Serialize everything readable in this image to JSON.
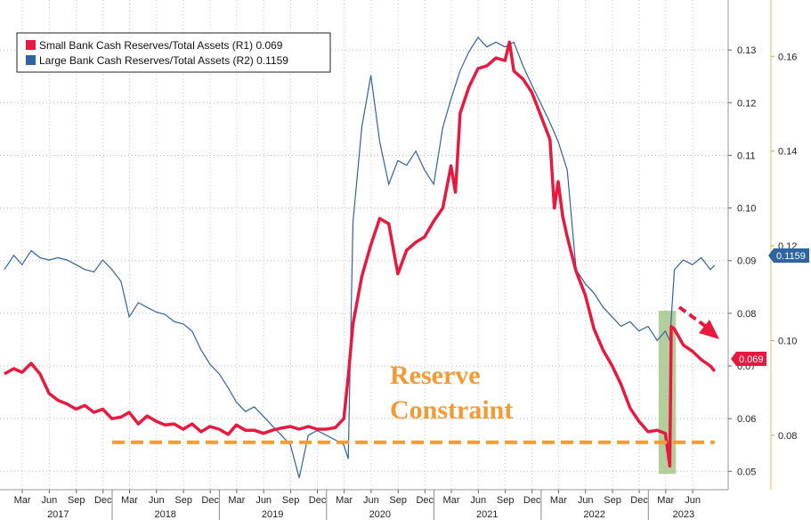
{
  "chart_data": {
    "type": "line",
    "legend_position": "top-left",
    "grid": true,
    "series": [
      {
        "name": "Small Bank Cash Reserves/Total Assets (R1)",
        "last_value": "0.069",
        "axis": "R1",
        "color": "#e8193f",
        "points": [
          [
            "2016-12-30",
            0.0685
          ],
          [
            "2017-01-31",
            0.0695
          ],
          [
            "2017-02-28",
            0.0688
          ],
          [
            "2017-03-31",
            0.0705
          ],
          [
            "2017-04-30",
            0.0685
          ],
          [
            "2017-05-31",
            0.0648
          ],
          [
            "2017-06-30",
            0.0635
          ],
          [
            "2017-07-31",
            0.0628
          ],
          [
            "2017-08-31",
            0.0618
          ],
          [
            "2017-09-30",
            0.0625
          ],
          [
            "2017-10-31",
            0.0612
          ],
          [
            "2017-11-30",
            0.0618
          ],
          [
            "2017-12-31",
            0.06
          ],
          [
            "2018-01-31",
            0.0603
          ],
          [
            "2018-02-28",
            0.0612
          ],
          [
            "2018-03-31",
            0.059
          ],
          [
            "2018-04-30",
            0.0605
          ],
          [
            "2018-05-31",
            0.0595
          ],
          [
            "2018-06-30",
            0.0588
          ],
          [
            "2018-07-31",
            0.059
          ],
          [
            "2018-08-31",
            0.058
          ],
          [
            "2018-09-30",
            0.059
          ],
          [
            "2018-10-31",
            0.0575
          ],
          [
            "2018-11-30",
            0.0585
          ],
          [
            "2018-12-31",
            0.058
          ],
          [
            "2019-01-31",
            0.057
          ],
          [
            "2019-02-28",
            0.0588
          ],
          [
            "2019-03-31",
            0.0578
          ],
          [
            "2019-04-30",
            0.0578
          ],
          [
            "2019-05-31",
            0.0572
          ],
          [
            "2019-06-30",
            0.0578
          ],
          [
            "2019-07-31",
            0.0582
          ],
          [
            "2019-08-31",
            0.0585
          ],
          [
            "2019-09-30",
            0.058
          ],
          [
            "2019-10-31",
            0.0585
          ],
          [
            "2019-11-30",
            0.058
          ],
          [
            "2019-12-31",
            0.058
          ],
          [
            "2020-01-31",
            0.0583
          ],
          [
            "2020-02-29",
            0.06
          ],
          [
            "2020-03-15",
            0.068
          ],
          [
            "2020-03-31",
            0.078
          ],
          [
            "2020-04-30",
            0.087
          ],
          [
            "2020-05-31",
            0.093
          ],
          [
            "2020-06-30",
            0.098
          ],
          [
            "2020-07-31",
            0.097
          ],
          [
            "2020-08-31",
            0.0875
          ],
          [
            "2020-09-30",
            0.092
          ],
          [
            "2020-10-31",
            0.0935
          ],
          [
            "2020-11-30",
            0.0945
          ],
          [
            "2020-12-31",
            0.0975
          ],
          [
            "2021-01-31",
            0.1
          ],
          [
            "2021-02-28",
            0.108
          ],
          [
            "2021-03-15",
            0.103
          ],
          [
            "2021-03-31",
            0.118
          ],
          [
            "2021-04-30",
            0.123
          ],
          [
            "2021-05-31",
            0.1265
          ],
          [
            "2021-06-30",
            0.127
          ],
          [
            "2021-07-31",
            0.1285
          ],
          [
            "2021-08-31",
            0.128
          ],
          [
            "2021-09-15",
            0.1315
          ],
          [
            "2021-09-30",
            0.126
          ],
          [
            "2021-10-31",
            0.1245
          ],
          [
            "2021-11-30",
            0.122
          ],
          [
            "2021-12-31",
            0.1175
          ],
          [
            "2022-01-31",
            0.113
          ],
          [
            "2022-02-15",
            0.1
          ],
          [
            "2022-02-28",
            0.105
          ],
          [
            "2022-03-15",
            0.0985
          ],
          [
            "2022-03-31",
            0.0945
          ],
          [
            "2022-04-30",
            0.088
          ],
          [
            "2022-05-31",
            0.0835
          ],
          [
            "2022-06-30",
            0.077
          ],
          [
            "2022-07-31",
            0.073
          ],
          [
            "2022-08-31",
            0.07
          ],
          [
            "2022-09-30",
            0.0665
          ],
          [
            "2022-10-31",
            0.062
          ],
          [
            "2022-11-30",
            0.0595
          ],
          [
            "2022-12-31",
            0.0575
          ],
          [
            "2023-01-31",
            0.0578
          ],
          [
            "2023-02-28",
            0.0572
          ],
          [
            "2023-03-15",
            0.051
          ],
          [
            "2023-03-20",
            0.0775
          ],
          [
            "2023-03-31",
            0.077
          ],
          [
            "2023-04-30",
            0.074
          ],
          [
            "2023-05-31",
            0.0728
          ],
          [
            "2023-06-30",
            0.0712
          ],
          [
            "2023-07-31",
            0.07
          ],
          [
            "2023-08-15",
            0.069
          ]
        ]
      },
      {
        "name": "Large Bank Cash Reserves/Total Assets (R2)",
        "last_value": "0.1159",
        "axis": "R2",
        "color": "#2f63a1",
        "points": [
          [
            "2016-12-30",
            0.115
          ],
          [
            "2017-01-31",
            0.118
          ],
          [
            "2017-02-28",
            0.116
          ],
          [
            "2017-03-31",
            0.119
          ],
          [
            "2017-04-30",
            0.1175
          ],
          [
            "2017-05-31",
            0.117
          ],
          [
            "2017-06-30",
            0.1175
          ],
          [
            "2017-07-31",
            0.117
          ],
          [
            "2017-08-31",
            0.116
          ],
          [
            "2017-09-30",
            0.115
          ],
          [
            "2017-10-31",
            0.1145
          ],
          [
            "2017-11-30",
            0.117
          ],
          [
            "2017-12-31",
            0.115
          ],
          [
            "2018-01-31",
            0.1125
          ],
          [
            "2018-02-28",
            0.105
          ],
          [
            "2018-03-31",
            0.108
          ],
          [
            "2018-04-30",
            0.107
          ],
          [
            "2018-05-31",
            0.106
          ],
          [
            "2018-06-30",
            0.1055
          ],
          [
            "2018-07-31",
            0.104
          ],
          [
            "2018-08-31",
            0.1035
          ],
          [
            "2018-09-30",
            0.102
          ],
          [
            "2018-10-31",
            0.098
          ],
          [
            "2018-11-30",
            0.095
          ],
          [
            "2018-12-31",
            0.093
          ],
          [
            "2019-01-31",
            0.09
          ],
          [
            "2019-02-28",
            0.087
          ],
          [
            "2019-03-31",
            0.085
          ],
          [
            "2019-04-30",
            0.086
          ],
          [
            "2019-05-31",
            0.084
          ],
          [
            "2019-06-30",
            0.082
          ],
          [
            "2019-07-31",
            0.08
          ],
          [
            "2019-08-31",
            0.078
          ],
          [
            "2019-09-30",
            0.071
          ],
          [
            "2019-10-31",
            0.08
          ],
          [
            "2019-11-30",
            0.081
          ],
          [
            "2019-12-31",
            0.08
          ],
          [
            "2020-01-31",
            0.079
          ],
          [
            "2020-02-29",
            0.078
          ],
          [
            "2020-03-15",
            0.075
          ],
          [
            "2020-03-31",
            0.125
          ],
          [
            "2020-04-30",
            0.145
          ],
          [
            "2020-05-31",
            0.156
          ],
          [
            "2020-06-30",
            0.142
          ],
          [
            "2020-07-31",
            0.133
          ],
          [
            "2020-08-31",
            0.138
          ],
          [
            "2020-09-30",
            0.137
          ],
          [
            "2020-10-31",
            0.14
          ],
          [
            "2020-11-30",
            0.136
          ],
          [
            "2020-12-31",
            0.133
          ],
          [
            "2021-01-31",
            0.145
          ],
          [
            "2021-02-28",
            0.151
          ],
          [
            "2021-03-31",
            0.157
          ],
          [
            "2021-04-30",
            0.161
          ],
          [
            "2021-05-31",
            0.164
          ],
          [
            "2021-06-30",
            0.162
          ],
          [
            "2021-07-31",
            0.163
          ],
          [
            "2021-08-31",
            0.162
          ],
          [
            "2021-09-30",
            0.163
          ],
          [
            "2021-10-31",
            0.158
          ],
          [
            "2021-11-30",
            0.154
          ],
          [
            "2021-12-31",
            0.15
          ],
          [
            "2022-01-31",
            0.146
          ],
          [
            "2022-02-28",
            0.142
          ],
          [
            "2022-03-31",
            0.136
          ],
          [
            "2022-04-30",
            0.115
          ],
          [
            "2022-05-31",
            0.112
          ],
          [
            "2022-06-30",
            0.11
          ],
          [
            "2022-07-31",
            0.107
          ],
          [
            "2022-08-31",
            0.105
          ],
          [
            "2022-09-30",
            0.103
          ],
          [
            "2022-10-31",
            0.104
          ],
          [
            "2022-11-30",
            0.102
          ],
          [
            "2022-12-31",
            0.103
          ],
          [
            "2023-01-31",
            0.1
          ],
          [
            "2023-02-28",
            0.102
          ],
          [
            "2023-03-15",
            0.1
          ],
          [
            "2023-03-31",
            0.115
          ],
          [
            "2023-04-30",
            0.117
          ],
          [
            "2023-05-31",
            0.116
          ],
          [
            "2023-06-30",
            0.1175
          ],
          [
            "2023-07-31",
            0.115
          ],
          [
            "2023-08-15",
            0.1159
          ]
        ]
      }
    ],
    "axes": {
      "R1": {
        "range": [
          0.0465,
          0.1395
        ],
        "ticks": [
          "0.05",
          "0.06",
          "0.07",
          "0.08",
          "0.09",
          "0.10",
          "0.11",
          "0.12",
          "0.13"
        ]
      },
      "R2": {
        "range": [
          0.0685,
          0.1719
        ],
        "ticks": [
          "0.08",
          "0.10",
          "0.12",
          "0.14",
          "0.16"
        ]
      },
      "x": {
        "range": [
          "2016-12-15",
          "2023-09-30"
        ],
        "month_ticks": [
          {
            "label": "Mar",
            "date": "2017-03-01"
          },
          {
            "label": "Jun",
            "date": "2017-06-01"
          },
          {
            "label": "Sep",
            "date": "2017-09-01"
          },
          {
            "label": "Dec",
            "date": "2017-12-01"
          },
          {
            "label": "Mar",
            "date": "2018-03-01"
          },
          {
            "label": "Jun",
            "date": "2018-06-01"
          },
          {
            "label": "Sep",
            "date": "2018-09-01"
          },
          {
            "label": "Dec",
            "date": "2018-12-01"
          },
          {
            "label": "Mar",
            "date": "2019-03-01"
          },
          {
            "label": "Jun",
            "date": "2019-06-01"
          },
          {
            "label": "Sep",
            "date": "2019-09-01"
          },
          {
            "label": "Dec",
            "date": "2019-12-01"
          },
          {
            "label": "Mar",
            "date": "2020-03-01"
          },
          {
            "label": "Jun",
            "date": "2020-06-01"
          },
          {
            "label": "Sep",
            "date": "2020-09-01"
          },
          {
            "label": "Dec",
            "date": "2020-12-01"
          },
          {
            "label": "Mar",
            "date": "2021-03-01"
          },
          {
            "label": "Jun",
            "date": "2021-06-01"
          },
          {
            "label": "Sep",
            "date": "2021-09-01"
          },
          {
            "label": "Dec",
            "date": "2021-12-01"
          },
          {
            "label": "Mar",
            "date": "2022-03-01"
          },
          {
            "label": "Jun",
            "date": "2022-06-01"
          },
          {
            "label": "Sep",
            "date": "2022-09-01"
          },
          {
            "label": "Dec",
            "date": "2022-12-01"
          },
          {
            "label": "Mar",
            "date": "2023-03-01"
          },
          {
            "label": "Jun",
            "date": "2023-06-01"
          }
        ],
        "year_labels": [
          {
            "label": "2017",
            "date": "2017-07-01"
          },
          {
            "label": "2018",
            "date": "2018-07-01"
          },
          {
            "label": "2019",
            "date": "2019-07-01"
          },
          {
            "label": "2020",
            "date": "2020-07-01"
          },
          {
            "label": "2021",
            "date": "2021-07-01"
          },
          {
            "label": "2022",
            "date": "2022-07-01"
          },
          {
            "label": "2023",
            "date": "2023-05-01"
          }
        ]
      }
    },
    "annotations": {
      "text_line1": "Reserve",
      "text_line2": "Constraint",
      "constraint_level": 0.0555,
      "constraint_start": "2018-01-01",
      "constraint_end": "2023-08-15",
      "highlight_start": "2023-02-05",
      "highlight_end": "2023-04-05",
      "colors": {
        "constraint": "#f29a34",
        "highlight": "#9bbf7a",
        "arrow": "#e8193f"
      }
    }
  }
}
